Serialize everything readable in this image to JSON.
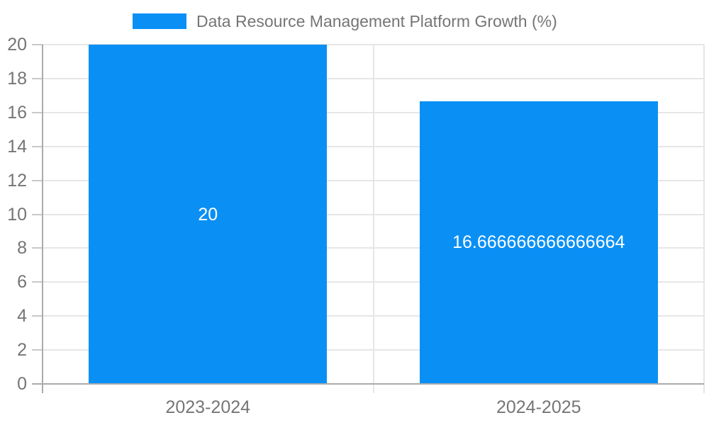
{
  "chart_data": {
    "type": "bar",
    "legend": "Data Resource Management Platform Growth (%)",
    "legend_position": "top",
    "categories": [
      "2023-2024",
      "2024-2025"
    ],
    "values": [
      20,
      16.666666666666664
    ],
    "value_labels": [
      "20",
      "16.666666666666664"
    ],
    "ylabel": "",
    "xlabel": "",
    "ylim": [
      0,
      20
    ],
    "ytick_step": 2,
    "ytick_labels": [
      "0",
      "2",
      "4",
      "6",
      "8",
      "10",
      "12",
      "14",
      "16",
      "18",
      "20"
    ],
    "grid": true,
    "colors": {
      "bar": "#0a90f5",
      "axis": "#ababab",
      "gridline": "#e6e6e6",
      "tick": "#c9c9c9",
      "text": "#757575",
      "value_label": "#ffffff",
      "background": "#ffffff"
    }
  }
}
